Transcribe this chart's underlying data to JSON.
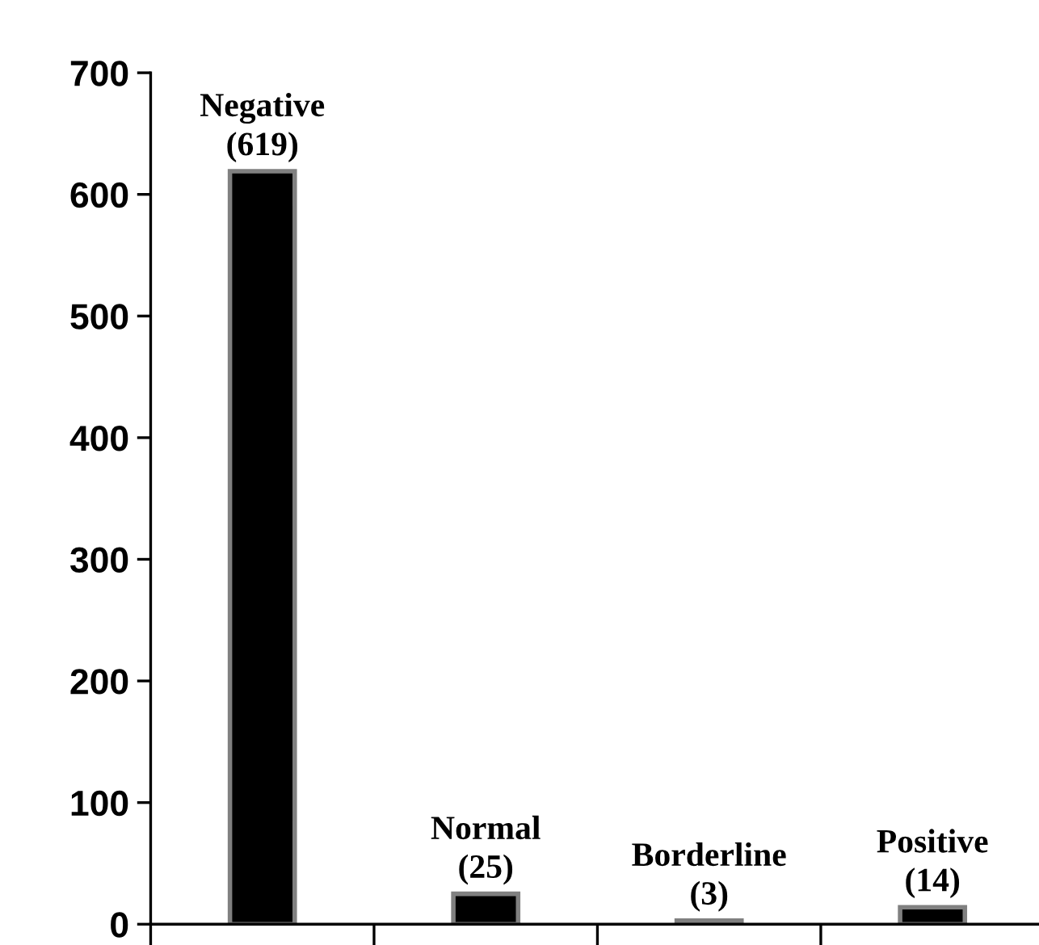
{
  "chart_data": {
    "type": "bar",
    "categories": [
      null,
      null,
      null,
      null
    ],
    "values": [
      619,
      25,
      3,
      14
    ],
    "value_labels": [
      "Negative\n(619)",
      "Normal\n(25)",
      "Borderline\n(3)",
      "Positive\n(14)"
    ],
    "color": "#000000",
    "ylim": [
      0,
      700
    ],
    "yticks": [
      0,
      100,
      200,
      300,
      400,
      500,
      600,
      700
    ],
    "grid": false,
    "legend": false
  }
}
